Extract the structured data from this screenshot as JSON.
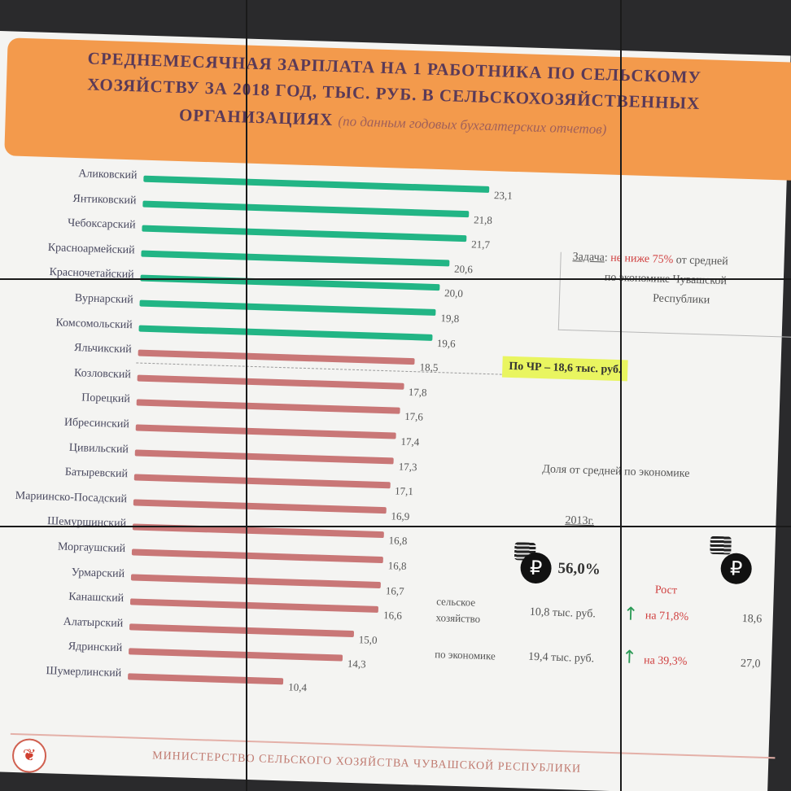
{
  "title": {
    "line1": "СРЕДНЕМЕСЯЧНАЯ ЗАРПЛАТА НА 1 РАБОТНИКА ПО СЕЛЬСКОМУ",
    "line2": "ХОЗЯЙСТВУ ЗА 2018 ГОД, ТЫС. РУБ. В СЕЛЬСКОХОЗЯЙСТВЕННЫХ",
    "line3": "ОРГАНИЗАЦИЯХ",
    "note": "(по данным годовых бухгалтерских отчетов)"
  },
  "chart_data": {
    "type": "bar",
    "orientation": "horizontal",
    "categories": [
      "Аликовский",
      "Янтиковский",
      "Чебоксарский",
      "Красноармейский",
      "Красночетайский",
      "Вурнарский",
      "Комсомольский",
      "Яльчикский",
      "Козловский",
      "Порецкий",
      "Ибресинский",
      "Цивильский",
      "Батыревский",
      "Мариинско-Посадский",
      "Шемуршинский",
      "Моргаушский",
      "Урмарский",
      "Канашский",
      "Алатырский",
      "Ядринский",
      "Шумерлинский"
    ],
    "values": [
      23.1,
      21.8,
      21.7,
      20.6,
      20.0,
      19.8,
      19.6,
      18.5,
      17.8,
      17.6,
      17.4,
      17.3,
      17.1,
      16.9,
      16.8,
      16.8,
      16.7,
      16.6,
      15.0,
      14.3,
      10.4
    ],
    "value_labels": [
      "23,1",
      "21,8",
      "21,7",
      "20,6",
      "20,0",
      "19,8",
      "19,6",
      "18,5",
      "17,8",
      "17,6",
      "17,4",
      "17,3",
      "17,1",
      "16,9",
      "16,8",
      "16,8",
      "16,7",
      "16,6",
      "15,0",
      "14,3",
      "10,4"
    ],
    "colors": {
      "above": "#22b585",
      "below": "#c97777"
    },
    "threshold_value": 18.6
  },
  "task": {
    "prefix": "Задача",
    "highlight": "не ниже 75%",
    "rest1": "от средней",
    "line2": "по экономике Чувашской",
    "line3": "Республики"
  },
  "highlight_label": "По ЧР – 18,6 тыс. руб.",
  "share": {
    "title": "Доля от средней по экономике",
    "year": "2013г.",
    "percent": "56,0%",
    "growth_header": "Рост",
    "rows": [
      {
        "label1": "сельское",
        "label2": "хозяйство",
        "value": "10,8 тыс. руб.",
        "growth": "на 71,8%",
        "right": "18,6"
      },
      {
        "label1": "по экономике",
        "label2": "",
        "value": "19,4 тыс. руб.",
        "growth": "на 39,3%",
        "right": "27,0"
      }
    ]
  },
  "footer": "МИНИСТЕРСТВО СЕЛЬСКОГО ХОЗЯЙСТВА ЧУВАШСКОЙ РЕСПУБЛИКИ",
  "icons": [
    "ruble-coin-icon",
    "coin-stack-icon",
    "arrow-up-icon",
    "ministry-logo-icon"
  ]
}
